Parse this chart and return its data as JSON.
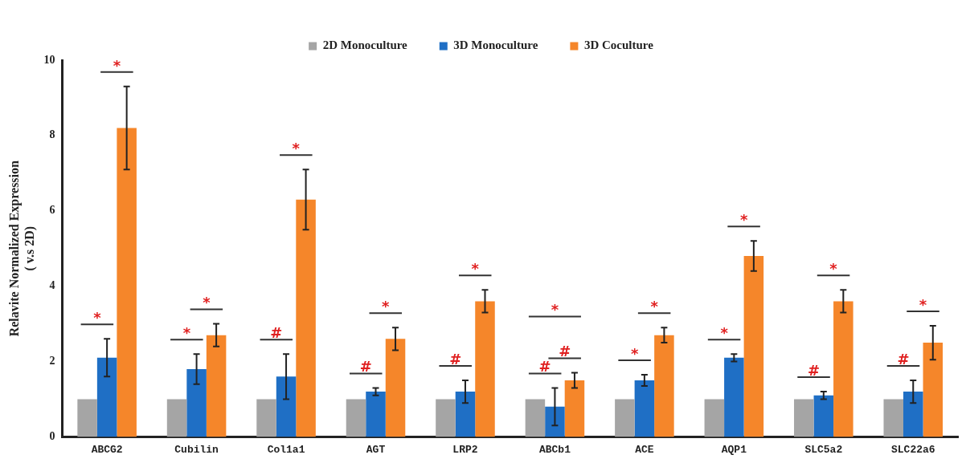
{
  "chart_data": {
    "type": "bar",
    "ylabel": "Relavite Normalized Expression\n( v.s 2D)",
    "categories": [
      "ABCG2",
      "Cubilin",
      "Col1a1",
      "AGT",
      "LRP2",
      "ABCb1",
      "ACE",
      "AQP1",
      "SLC5a2",
      "SLC22a6"
    ],
    "series": [
      {
        "name": "2D Monoculture",
        "color": "#a5a5a5",
        "values": [
          1,
          1,
          1,
          1,
          1,
          1,
          1,
          1,
          1,
          1
        ]
      },
      {
        "name": "3D Monoculture",
        "color": "#1f6fc5",
        "values": [
          2.1,
          1.8,
          1.6,
          1.2,
          1.2,
          0.8,
          1.5,
          2.1,
          1.1,
          1.2
        ],
        "errors": [
          0.5,
          0.4,
          0.6,
          0.1,
          0.3,
          0.5,
          0.15,
          0.1,
          0.1,
          0.3
        ]
      },
      {
        "name": "3D Coculture",
        "color": "#f5862a",
        "values": [
          8.2,
          2.7,
          6.3,
          2.6,
          3.6,
          1.5,
          2.7,
          4.8,
          3.6,
          2.5
        ],
        "errors": [
          1.1,
          0.3,
          0.8,
          0.3,
          0.3,
          0.2,
          0.2,
          0.4,
          0.3,
          0.45
        ]
      }
    ],
    "ylim": [
      0,
      10
    ],
    "yticks": [
      0,
      2,
      4,
      6,
      8,
      10
    ],
    "grid": false,
    "legend": "top",
    "annotations": [
      "*",
      "*",
      "*",
      "*",
      "#",
      "*",
      "#",
      "*",
      "#",
      "*",
      "#",
      "#",
      "*",
      "*",
      "*",
      "*",
      "*",
      "#",
      "*",
      "#",
      "*"
    ]
  }
}
